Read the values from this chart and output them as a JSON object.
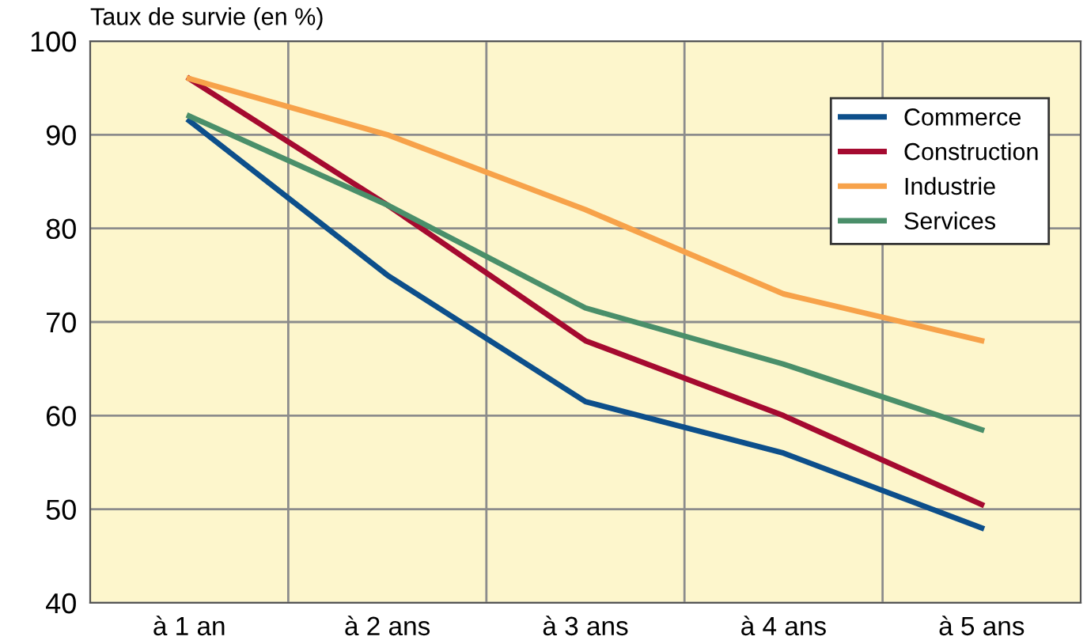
{
  "chart_data": {
    "type": "line",
    "ylabel": "Taux de survie (en %)",
    "categories": [
      "à 1 an",
      "à 2 ans",
      "à 3 ans",
      "à 4 ans",
      "à 5 ans"
    ],
    "series": [
      {
        "name": "Commerce",
        "color": "#0d4f8b",
        "values": [
          91.5,
          75,
          61.5,
          56,
          48
        ]
      },
      {
        "name": "Construction",
        "color": "#a50a30",
        "values": [
          96,
          82.5,
          68,
          60,
          50.5
        ]
      },
      {
        "name": "Industrie",
        "color": "#f7a24a",
        "values": [
          96,
          90,
          82,
          73,
          68
        ]
      },
      {
        "name": "Services",
        "color": "#4a8f6a",
        "values": [
          92,
          82.5,
          71.5,
          65.5,
          58.5
        ]
      }
    ],
    "ylim": [
      40,
      100
    ],
    "yticks": [
      40,
      50,
      60,
      70,
      80,
      90,
      100
    ],
    "grid": true,
    "legend": "top right",
    "marker": "none",
    "line_style": "solid"
  }
}
